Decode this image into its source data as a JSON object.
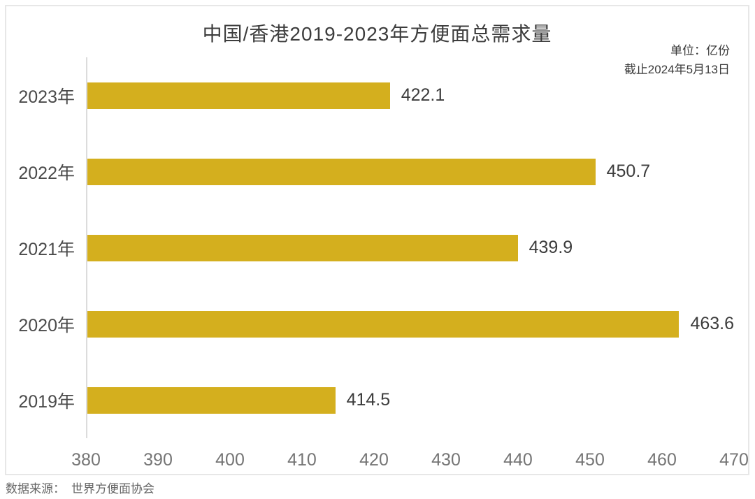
{
  "title": "中国/香港2019-2023年方便面总需求量",
  "meta": {
    "unit_note": "单位：亿份",
    "as_of_note": "截止2024年5月13日"
  },
  "source": {
    "label": "数据来源：",
    "name": "世界方便面协会"
  },
  "colors": {
    "bar": "#d4af1e",
    "axis_line": "#dcdcdc",
    "frame_border": "#e7e7e7",
    "tick_text": "#757575",
    "category_text": "#4a4a4a",
    "value_text": "#3c3c3c"
  },
  "chart_data": {
    "type": "bar",
    "orientation": "horizontal",
    "title": "中国/香港2019-2023年方便面总需求量",
    "categories": [
      "2023年",
      "2022年",
      "2021年",
      "2020年",
      "2019年"
    ],
    "values": [
      422.1,
      450.7,
      439.9,
      463.6,
      414.5
    ],
    "value_labels": [
      "422.1",
      "450.7",
      "439.9",
      "463.6",
      "414.5"
    ],
    "unit": "亿份",
    "xlabel": "",
    "ylabel": "",
    "xlim": [
      380,
      470
    ],
    "xticks": [
      380,
      390,
      400,
      410,
      420,
      430,
      440,
      450,
      460,
      470
    ],
    "grid": false,
    "legend": false,
    "bar_color": "#d4af1e"
  }
}
